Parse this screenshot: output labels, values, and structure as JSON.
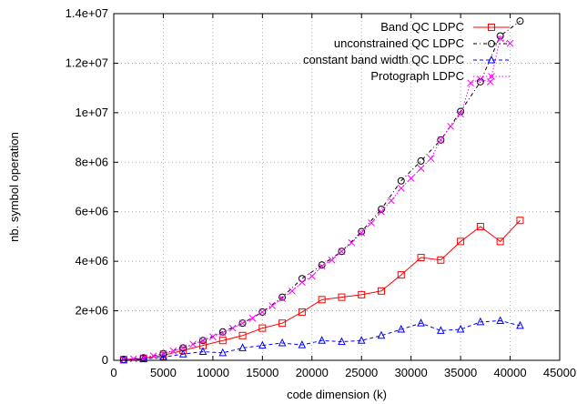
{
  "chart_data": {
    "type": "line",
    "title": "",
    "xlabel": "code dimension (k)",
    "ylabel": "nb. symbol operation",
    "xlim": [
      0,
      45000
    ],
    "ylim": [
      0,
      14000000
    ],
    "x_ticks": [
      0,
      5000,
      10000,
      15000,
      20000,
      25000,
      30000,
      35000,
      40000,
      45000
    ],
    "x_tick_labels": [
      "0",
      "5000",
      "10000",
      "15000",
      "20000",
      "25000",
      "30000",
      "35000",
      "40000",
      "45000"
    ],
    "y_ticks": [
      0,
      2000000,
      4000000,
      6000000,
      8000000,
      10000000,
      12000000,
      14000000
    ],
    "y_tick_labels": [
      "0",
      "2e+06",
      "4e+06",
      "6e+06",
      "8e+06",
      "1e+07",
      "1.2e+07",
      "1.4e+07"
    ],
    "grid": true,
    "legend_position": "top-right",
    "series": [
      {
        "name": "Band QC LDPC",
        "color": "#ff0000",
        "marker": "square",
        "line": "solid",
        "points": [
          [
            1000,
            30000
          ],
          [
            3000,
            80000
          ],
          [
            5000,
            200000
          ],
          [
            7000,
            400000
          ],
          [
            9000,
            600000
          ],
          [
            11000,
            800000
          ],
          [
            13000,
            1000000
          ],
          [
            15000,
            1300000
          ],
          [
            17000,
            1500000
          ],
          [
            19000,
            1950000
          ],
          [
            21000,
            2450000
          ],
          [
            23000,
            2550000
          ],
          [
            25000,
            2650000
          ],
          [
            27000,
            2800000
          ],
          [
            29000,
            3450000
          ],
          [
            31000,
            4150000
          ],
          [
            33000,
            4050000
          ],
          [
            35000,
            4800000
          ],
          [
            37000,
            5400000
          ],
          [
            39000,
            4800000
          ],
          [
            41000,
            5650000
          ]
        ]
      },
      {
        "name": "unconstrained QC LDPC",
        "color": "#000000",
        "marker": "circle",
        "line": "dash-dot",
        "points": [
          [
            1000,
            30000
          ],
          [
            3000,
            100000
          ],
          [
            5000,
            270000
          ],
          [
            7000,
            500000
          ],
          [
            9000,
            800000
          ],
          [
            11000,
            1150000
          ],
          [
            13000,
            1500000
          ],
          [
            15000,
            1950000
          ],
          [
            17000,
            2550000
          ],
          [
            19000,
            3300000
          ],
          [
            21000,
            3850000
          ],
          [
            23000,
            4400000
          ],
          [
            25000,
            5200000
          ],
          [
            27000,
            6100000
          ],
          [
            29000,
            7250000
          ],
          [
            31000,
            8050000
          ],
          [
            33000,
            8900000
          ],
          [
            35000,
            10050000
          ],
          [
            37000,
            11250000
          ],
          [
            39000,
            13100000
          ],
          [
            41000,
            13700000
          ]
        ]
      },
      {
        "name": "constant band width QC LDPC",
        "color": "#0000ff",
        "marker": "triangle",
        "line": "dashed",
        "points": [
          [
            1000,
            10000
          ],
          [
            3000,
            50000
          ],
          [
            5000,
            130000
          ],
          [
            7000,
            250000
          ],
          [
            9000,
            350000
          ],
          [
            11000,
            300000
          ],
          [
            13000,
            500000
          ],
          [
            15000,
            600000
          ],
          [
            17000,
            700000
          ],
          [
            19000,
            620000
          ],
          [
            21000,
            800000
          ],
          [
            23000,
            750000
          ],
          [
            25000,
            800000
          ],
          [
            27000,
            1000000
          ],
          [
            29000,
            1250000
          ],
          [
            31000,
            1500000
          ],
          [
            33000,
            1200000
          ],
          [
            35000,
            1250000
          ],
          [
            37000,
            1550000
          ],
          [
            39000,
            1600000
          ],
          [
            41000,
            1400000
          ]
        ]
      },
      {
        "name": "Protograph LDPC",
        "color": "#ff00ff",
        "marker": "x",
        "line": "dotted",
        "points": [
          [
            1000,
            30000
          ],
          [
            2000,
            60000
          ],
          [
            3000,
            100000
          ],
          [
            4000,
            180000
          ],
          [
            5000,
            270000
          ],
          [
            6000,
            380000
          ],
          [
            7000,
            500000
          ],
          [
            8000,
            650000
          ],
          [
            9000,
            800000
          ],
          [
            10000,
            950000
          ],
          [
            11000,
            1100000
          ],
          [
            12000,
            1300000
          ],
          [
            13000,
            1500000
          ],
          [
            14000,
            1700000
          ],
          [
            15000,
            1950000
          ],
          [
            16000,
            2200000
          ],
          [
            17000,
            2500000
          ],
          [
            18000,
            2800000
          ],
          [
            19000,
            3150000
          ],
          [
            20000,
            3400000
          ],
          [
            21000,
            3800000
          ],
          [
            22000,
            4050000
          ],
          [
            23000,
            4400000
          ],
          [
            24000,
            4750000
          ],
          [
            25000,
            5150000
          ],
          [
            26000,
            5550000
          ],
          [
            27000,
            6000000
          ],
          [
            28000,
            6450000
          ],
          [
            29000,
            6950000
          ],
          [
            30000,
            7350000
          ],
          [
            31000,
            7750000
          ],
          [
            32000,
            8150000
          ],
          [
            33000,
            8900000
          ],
          [
            34000,
            9450000
          ],
          [
            35000,
            9950000
          ],
          [
            36000,
            11200000
          ],
          [
            37000,
            11350000
          ],
          [
            38000,
            11250000
          ],
          [
            39000,
            13000000
          ],
          [
            40000,
            12800000
          ]
        ]
      }
    ]
  }
}
